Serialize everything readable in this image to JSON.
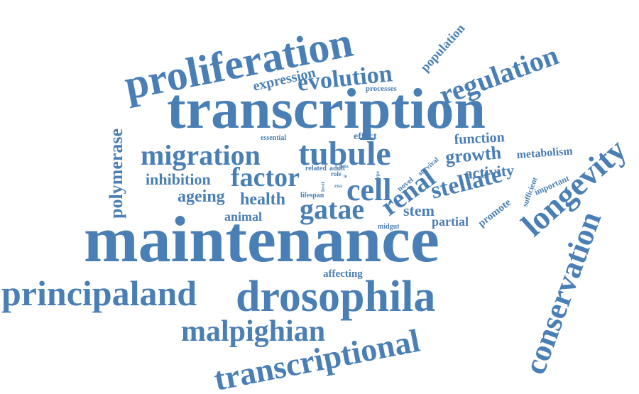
{
  "words": [
    {
      "text": "maintenance"
    },
    {
      "text": "transcription"
    },
    {
      "text": "proliferation"
    },
    {
      "text": "drosophila"
    },
    {
      "text": "transcriptional"
    },
    {
      "text": "conservation"
    },
    {
      "text": "longevity"
    },
    {
      "text": "principaland"
    },
    {
      "text": "tubule"
    },
    {
      "text": "migration"
    },
    {
      "text": "malpighian"
    },
    {
      "text": "regulation"
    },
    {
      "text": "evolution"
    },
    {
      "text": "factor"
    },
    {
      "text": "cell"
    },
    {
      "text": "gatae"
    },
    {
      "text": "renal"
    },
    {
      "text": "stellate"
    },
    {
      "text": "polymerase"
    },
    {
      "text": "inhibition"
    },
    {
      "text": "ageing"
    },
    {
      "text": "health"
    },
    {
      "text": "growth"
    },
    {
      "text": "activity"
    },
    {
      "text": "function"
    },
    {
      "text": "animal"
    },
    {
      "text": "stem"
    },
    {
      "text": "expression"
    },
    {
      "text": "population"
    },
    {
      "text": "partial"
    },
    {
      "text": "promote"
    },
    {
      "text": "metabolism"
    },
    {
      "text": "affecting"
    },
    {
      "text": "processes"
    },
    {
      "text": "essential"
    },
    {
      "text": "effect"
    },
    {
      "text": "survival"
    },
    {
      "text": "important"
    },
    {
      "text": "sufficient"
    },
    {
      "text": "lifespan"
    },
    {
      "text": "related"
    },
    {
      "text": "adult"
    },
    {
      "text": "novel"
    },
    {
      "text": "midgut"
    },
    {
      "text": "role"
    },
    {
      "text": "level"
    },
    {
      "text": "gata"
    },
    {
      "text": "type"
    },
    {
      "text": "rna"
    },
    {
      "text": "in"
    }
  ],
  "colors": {
    "word": "#4a7fb5",
    "background": "#ffffff"
  }
}
